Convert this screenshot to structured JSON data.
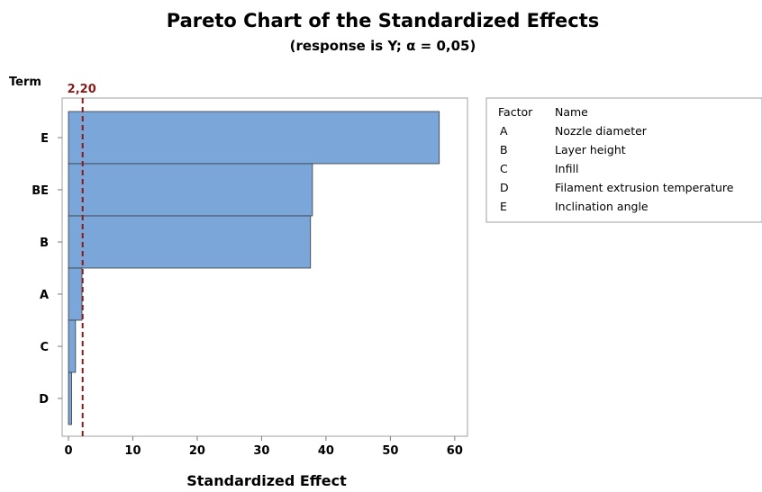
{
  "chart_data": {
    "type": "bar",
    "orientation": "horizontal",
    "title": "Pareto Chart of the Standardized Effects",
    "subtitle": "(response is Y; α = 0,05)",
    "xlabel": "Standardized Effect",
    "ylabel": "Term",
    "xlim": [
      0,
      61
    ],
    "xticks": [
      0,
      10,
      20,
      30,
      40,
      50,
      60
    ],
    "categories": [
      "E",
      "BE",
      "B",
      "A",
      "C",
      "D"
    ],
    "values": [
      57.6,
      37.9,
      37.6,
      2.1,
      1.1,
      0.5
    ],
    "reference_line": {
      "value": 2.2,
      "label": "2,20",
      "color": "#8b1a1a"
    },
    "bar_color": "#7aa6d9",
    "bar_edge_color": "#3b3b3b",
    "grid": false,
    "legend": {
      "placement": "right",
      "headers": [
        "Factor",
        "Name"
      ],
      "entries": [
        {
          "factor": "A",
          "name": "Nozzle diameter"
        },
        {
          "factor": "B",
          "name": "Layer height"
        },
        {
          "factor": "C",
          "name": "Infill"
        },
        {
          "factor": "D",
          "name": "Filament extrusion temperature"
        },
        {
          "factor": "E",
          "name": "Inclination angle"
        }
      ]
    }
  }
}
